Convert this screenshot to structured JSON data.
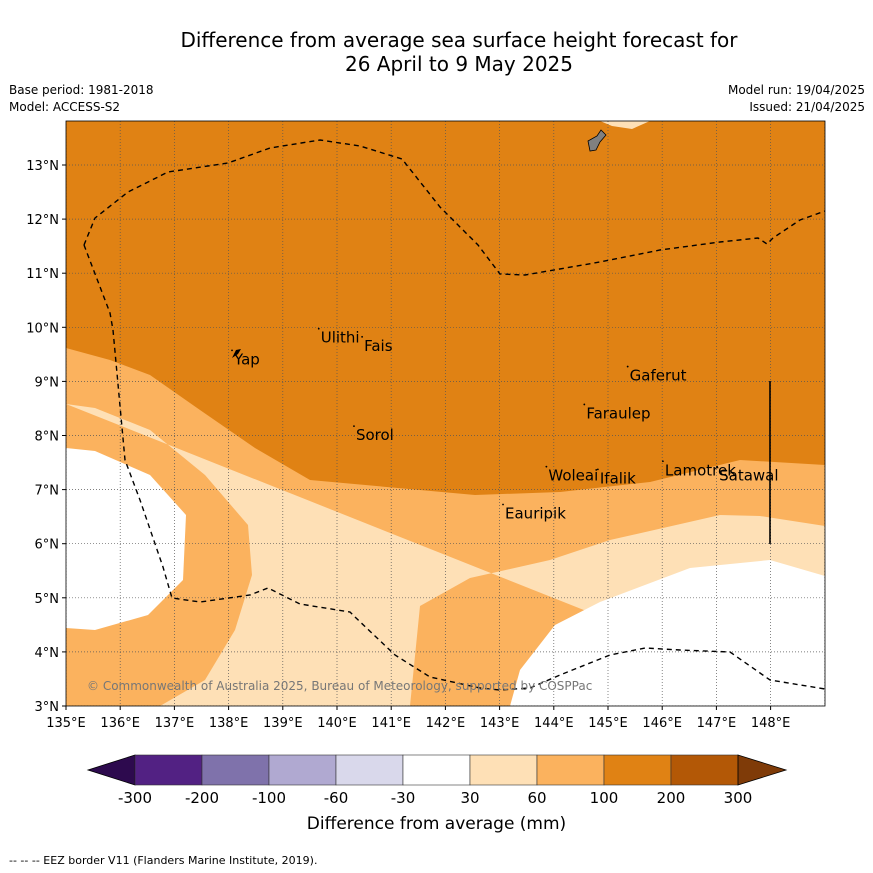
{
  "title_line1": "Difference from average sea surface height forecast for",
  "title_line2": "26 April to 9 May 2025",
  "base_period": "Base period: 1981-2018",
  "model": "Model: ACCESS-S2",
  "model_run": "Model run: 19/04/2025",
  "issued": "Issued: 21/04/2025",
  "copyright": "© Commonwealth of Australia 2025, Bureau of Meteorology, supported by COSPPac",
  "x_ticks": [
    "135°E",
    "136°E",
    "137°E",
    "138°E",
    "139°E",
    "140°E",
    "141°E",
    "142°E",
    "143°E",
    "144°E",
    "145°E",
    "146°E",
    "147°E",
    "148°E"
  ],
  "y_ticks": [
    "3°N",
    "4°N",
    "5°N",
    "6°N",
    "7°N",
    "8°N",
    "9°N",
    "10°N",
    "11°N",
    "12°N",
    "13°N"
  ],
  "places": [
    {
      "name": "Yap",
      "lon": 138.1,
      "lat": 9.5
    },
    {
      "name": "Ulithi",
      "lon": 139.7,
      "lat": 9.9
    },
    {
      "name": "Fais",
      "lon": 140.5,
      "lat": 9.75
    },
    {
      "name": "Sorol",
      "lon": 140.35,
      "lat": 8.1
    },
    {
      "name": "Gaferut",
      "lon": 145.4,
      "lat": 9.2
    },
    {
      "name": "Faraulep",
      "lon": 144.6,
      "lat": 8.5
    },
    {
      "name": "Woleai",
      "lon": 143.9,
      "lat": 7.35
    },
    {
      "name": "Ifalik",
      "lon": 144.85,
      "lat": 7.3
    },
    {
      "name": "Lamotrek",
      "lon": 146.05,
      "lat": 7.45
    },
    {
      "name": "Satawal",
      "lon": 147.05,
      "lat": 7.35
    },
    {
      "name": "Eauripik",
      "lon": 143.1,
      "lat": 6.65
    }
  ],
  "colorbar": {
    "title": "Difference from average (mm)",
    "labels": [
      "-300",
      "-200",
      "-100",
      "-60",
      "-30",
      "30",
      "60",
      "100",
      "200",
      "300"
    ],
    "colors": [
      "#522183",
      "#7f72ab",
      "#b0a9d1",
      "#d9d8eb",
      "#ffffff",
      "#fee0b6",
      "#fbb25e",
      "#e08214",
      "#b35806"
    ],
    "under_color": "#2d0a4e",
    "over_color": "#7f3b08"
  },
  "footer": "--  --  -- EEZ border V11 (Flanders Marine Institute, 2019)."
}
